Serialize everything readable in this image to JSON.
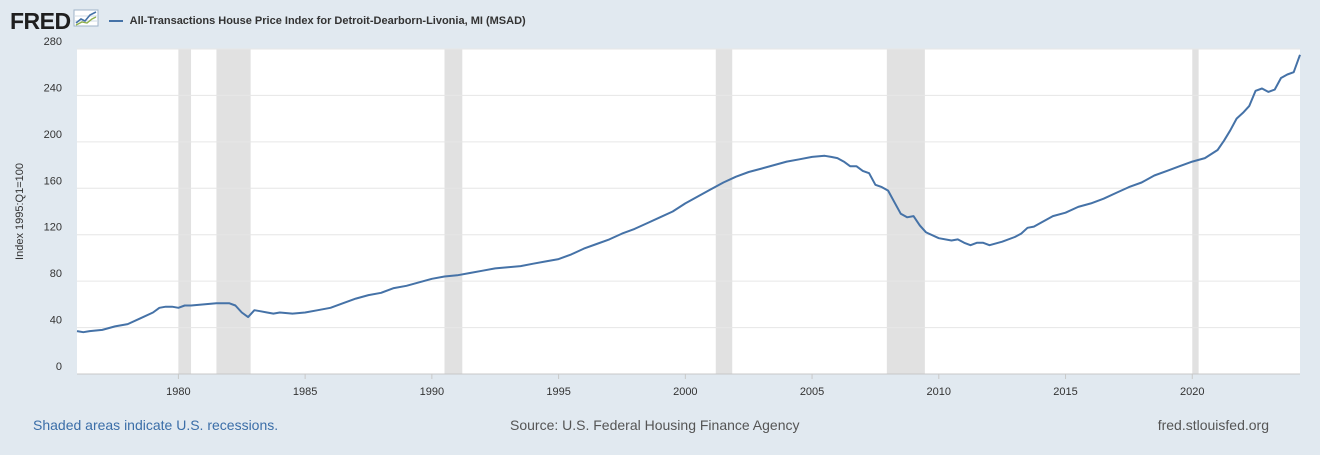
{
  "header": {
    "logo": "FRED",
    "logo_icon": "line-graph-icon",
    "legend_label": "All-Transactions House Price Index for Detroit-Dearborn-Livonia, MI (MSAD)"
  },
  "footer": {
    "recession_note": "Shaded areas indicate U.S. recessions.",
    "source": "Source: U.S. Federal Housing Finance Agency",
    "site": "fred.stlouisfed.org"
  },
  "colors": {
    "line": "#4572a7",
    "recession": "#e1e1e1",
    "background": "#e1e9f0",
    "plot_background": "#ffffff"
  },
  "chart_data": {
    "type": "line",
    "title": "All-Transactions House Price Index for Detroit-Dearborn-Livonia, MI (MSAD)",
    "ylabel": "Index 1995:Q1=100",
    "xlabel": "",
    "xlim": [
      1976.0,
      2024.25
    ],
    "ylim": [
      0,
      280
    ],
    "y_ticks": [
      0,
      40,
      80,
      120,
      160,
      200,
      240,
      280
    ],
    "x_ticks": [
      1980,
      1985,
      1990,
      1995,
      2000,
      2005,
      2010,
      2015,
      2020
    ],
    "grid": true,
    "legend": "top-left",
    "recessions": [
      [
        1980.0,
        1980.5
      ],
      [
        1981.5,
        1982.85
      ],
      [
        1990.5,
        1991.2
      ],
      [
        2001.2,
        2001.85
      ],
      [
        2007.95,
        2009.45
      ],
      [
        2020.0,
        2020.25
      ]
    ],
    "series": [
      {
        "name": "All-Transactions House Price Index for Detroit-Dearborn-Livonia, MI (MSAD)",
        "x": [
          1976.0,
          1976.25,
          1976.5,
          1977.0,
          1977.5,
          1978.0,
          1978.5,
          1979.0,
          1979.25,
          1979.5,
          1979.75,
          1980.0,
          1980.25,
          1980.5,
          1981.0,
          1981.5,
          1982.0,
          1982.25,
          1982.5,
          1982.75,
          1983.0,
          1983.25,
          1983.5,
          1983.75,
          1984.0,
          1984.5,
          1985.0,
          1985.5,
          1986.0,
          1986.5,
          1987.0,
          1987.5,
          1988.0,
          1988.5,
          1989.0,
          1989.5,
          1990.0,
          1990.5,
          1991.0,
          1991.5,
          1992.0,
          1992.5,
          1993.0,
          1993.5,
          1994.0,
          1994.5,
          1995.0,
          1995.5,
          1996.0,
          1996.5,
          1997.0,
          1997.5,
          1998.0,
          1998.5,
          1999.0,
          1999.5,
          2000.0,
          2000.5,
          2001.0,
          2001.5,
          2002.0,
          2002.5,
          2003.0,
          2003.5,
          2004.0,
          2004.5,
          2005.0,
          2005.5,
          2005.75,
          2006.0,
          2006.25,
          2006.5,
          2006.75,
          2007.0,
          2007.25,
          2007.5,
          2007.75,
          2008.0,
          2008.25,
          2008.5,
          2008.75,
          2009.0,
          2009.25,
          2009.5,
          2010.0,
          2010.5,
          2010.75,
          2011.0,
          2011.25,
          2011.5,
          2011.75,
          2012.0,
          2012.5,
          2013.0,
          2013.25,
          2013.5,
          2013.75,
          2014.0,
          2014.5,
          2015.0,
          2015.5,
          2016.0,
          2016.5,
          2017.0,
          2017.5,
          2018.0,
          2018.5,
          2019.0,
          2019.5,
          2020.0,
          2020.5,
          2021.0,
          2021.25,
          2021.5,
          2021.75,
          2022.0,
          2022.25,
          2022.5,
          2022.75,
          2023.0,
          2023.25,
          2023.5,
          2023.75,
          2024.0,
          2024.25
        ],
        "values": [
          37,
          36,
          37,
          38,
          41,
          43,
          48,
          53,
          57,
          58,
          58,
          57,
          59,
          59,
          60,
          61,
          61,
          59,
          53,
          49,
          55,
          54,
          53,
          52,
          53,
          52,
          53,
          55,
          57,
          61,
          65,
          68,
          70,
          74,
          76,
          79,
          82,
          84,
          85,
          87,
          89,
          91,
          92,
          93,
          95,
          97,
          99,
          103,
          108,
          112,
          116,
          121,
          125,
          130,
          135,
          140,
          147,
          153,
          159,
          165,
          170,
          174,
          177,
          180,
          183,
          185,
          187,
          188,
          187,
          186,
          183,
          179,
          179,
          175,
          173,
          163,
          161,
          158,
          148,
          138,
          135,
          136,
          128,
          122,
          117,
          115,
          116,
          113,
          111,
          113,
          113,
          111,
          114,
          118,
          121,
          126,
          127,
          130,
          136,
          139,
          144,
          147,
          151,
          156,
          161,
          165,
          171,
          175,
          179,
          183,
          186,
          193,
          201,
          210,
          220,
          225,
          231,
          244,
          246,
          243,
          245,
          255,
          258,
          260,
          275
        ]
      }
    ]
  }
}
